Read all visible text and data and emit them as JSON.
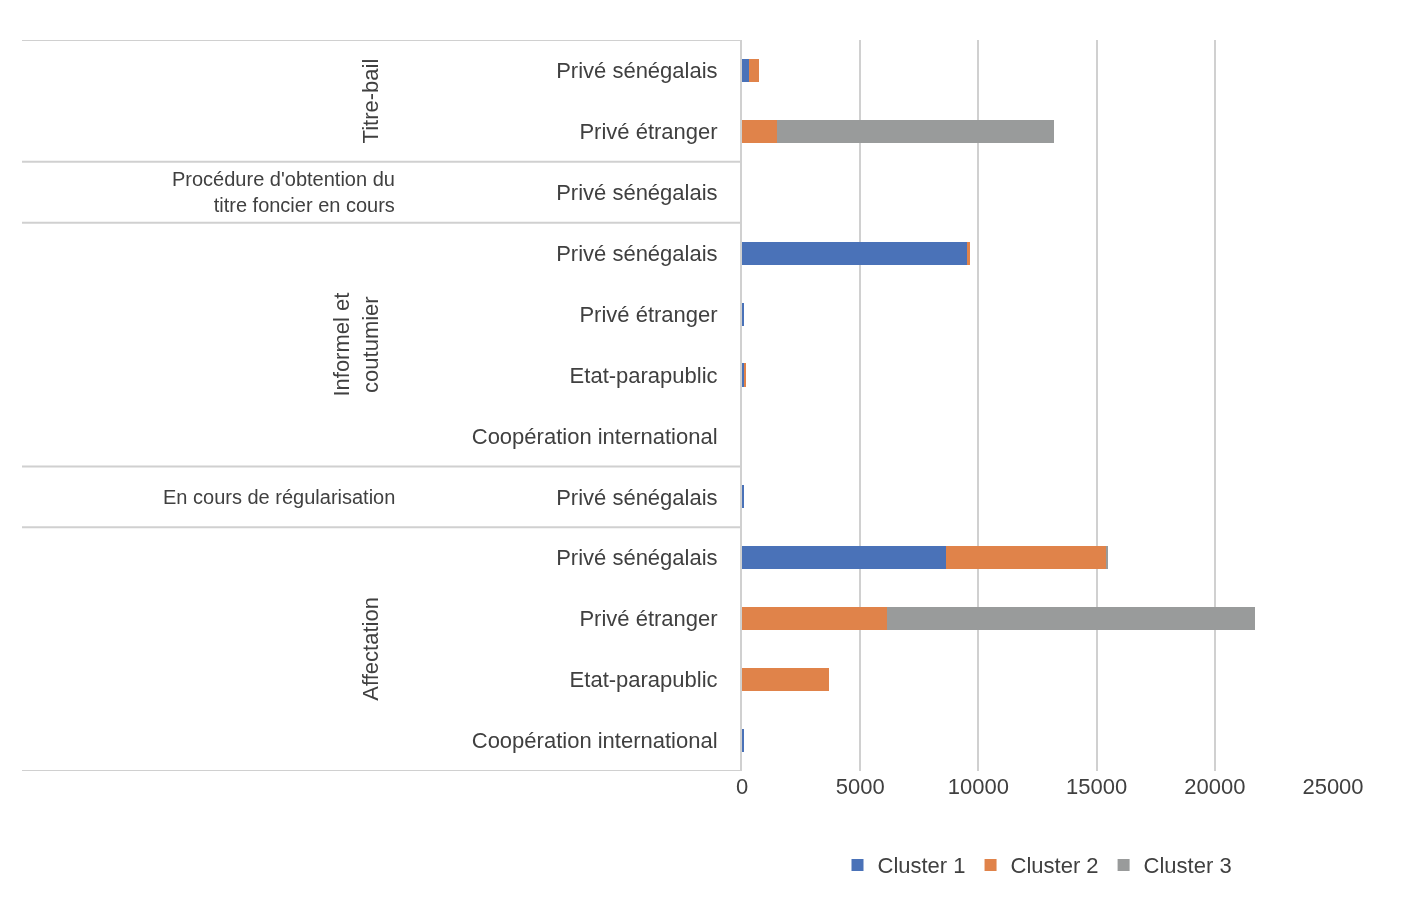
{
  "chart_data": {
    "type": "bar",
    "orientation": "horizontal",
    "stacked": true,
    "categories": [
      "Privé sénégalais",
      "Privé étranger",
      "Privé sénégalais",
      "Privé sénégalais",
      "Privé étranger",
      "Etat-parapublic",
      "Coopération international",
      "Privé sénégalais",
      "Privé sénégalais",
      "Privé étranger",
      "Etat-parapublic",
      "Coopération international"
    ],
    "series": [
      {
        "name": "Cluster 1",
        "color": "#4a72b8",
        "values": [
          300,
          null,
          null,
          9500,
          100,
          100,
          null,
          80,
          8650,
          null,
          null,
          100
        ]
      },
      {
        "name": "Cluster 2",
        "color": "#e0834a",
        "values": [
          400,
          1500,
          null,
          150,
          null,
          80,
          null,
          null,
          6750,
          6150,
          3700,
          null
        ]
      },
      {
        "name": "Cluster 3",
        "color": "#999b9b",
        "values": [
          null,
          11700,
          null,
          null,
          null,
          null,
          null,
          null,
          100,
          15550,
          null,
          null
        ]
      }
    ],
    "annotations": [
      "Titre-bail",
      "Procédure d'obtention du titre foncier en cours",
      "Informel et coutumier",
      "En cours de régularisation",
      "Affectation"
    ],
    "xlim": [
      0,
      25000
    ],
    "xticks": [
      0,
      5000,
      10000,
      15000,
      20000,
      25000
    ],
    "grid": "x",
    "legend": "bottom"
  }
}
